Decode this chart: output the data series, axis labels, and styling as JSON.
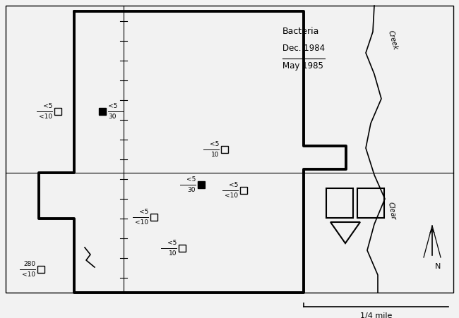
{
  "fig_width": 6.5,
  "fig_height": 4.51,
  "bg_color": "#f2f2f2",
  "title_text": "Bacteria",
  "subtitle1": "Dec. 1984",
  "subtitle2": "May 1985",
  "scale_label": "1/4 mile"
}
